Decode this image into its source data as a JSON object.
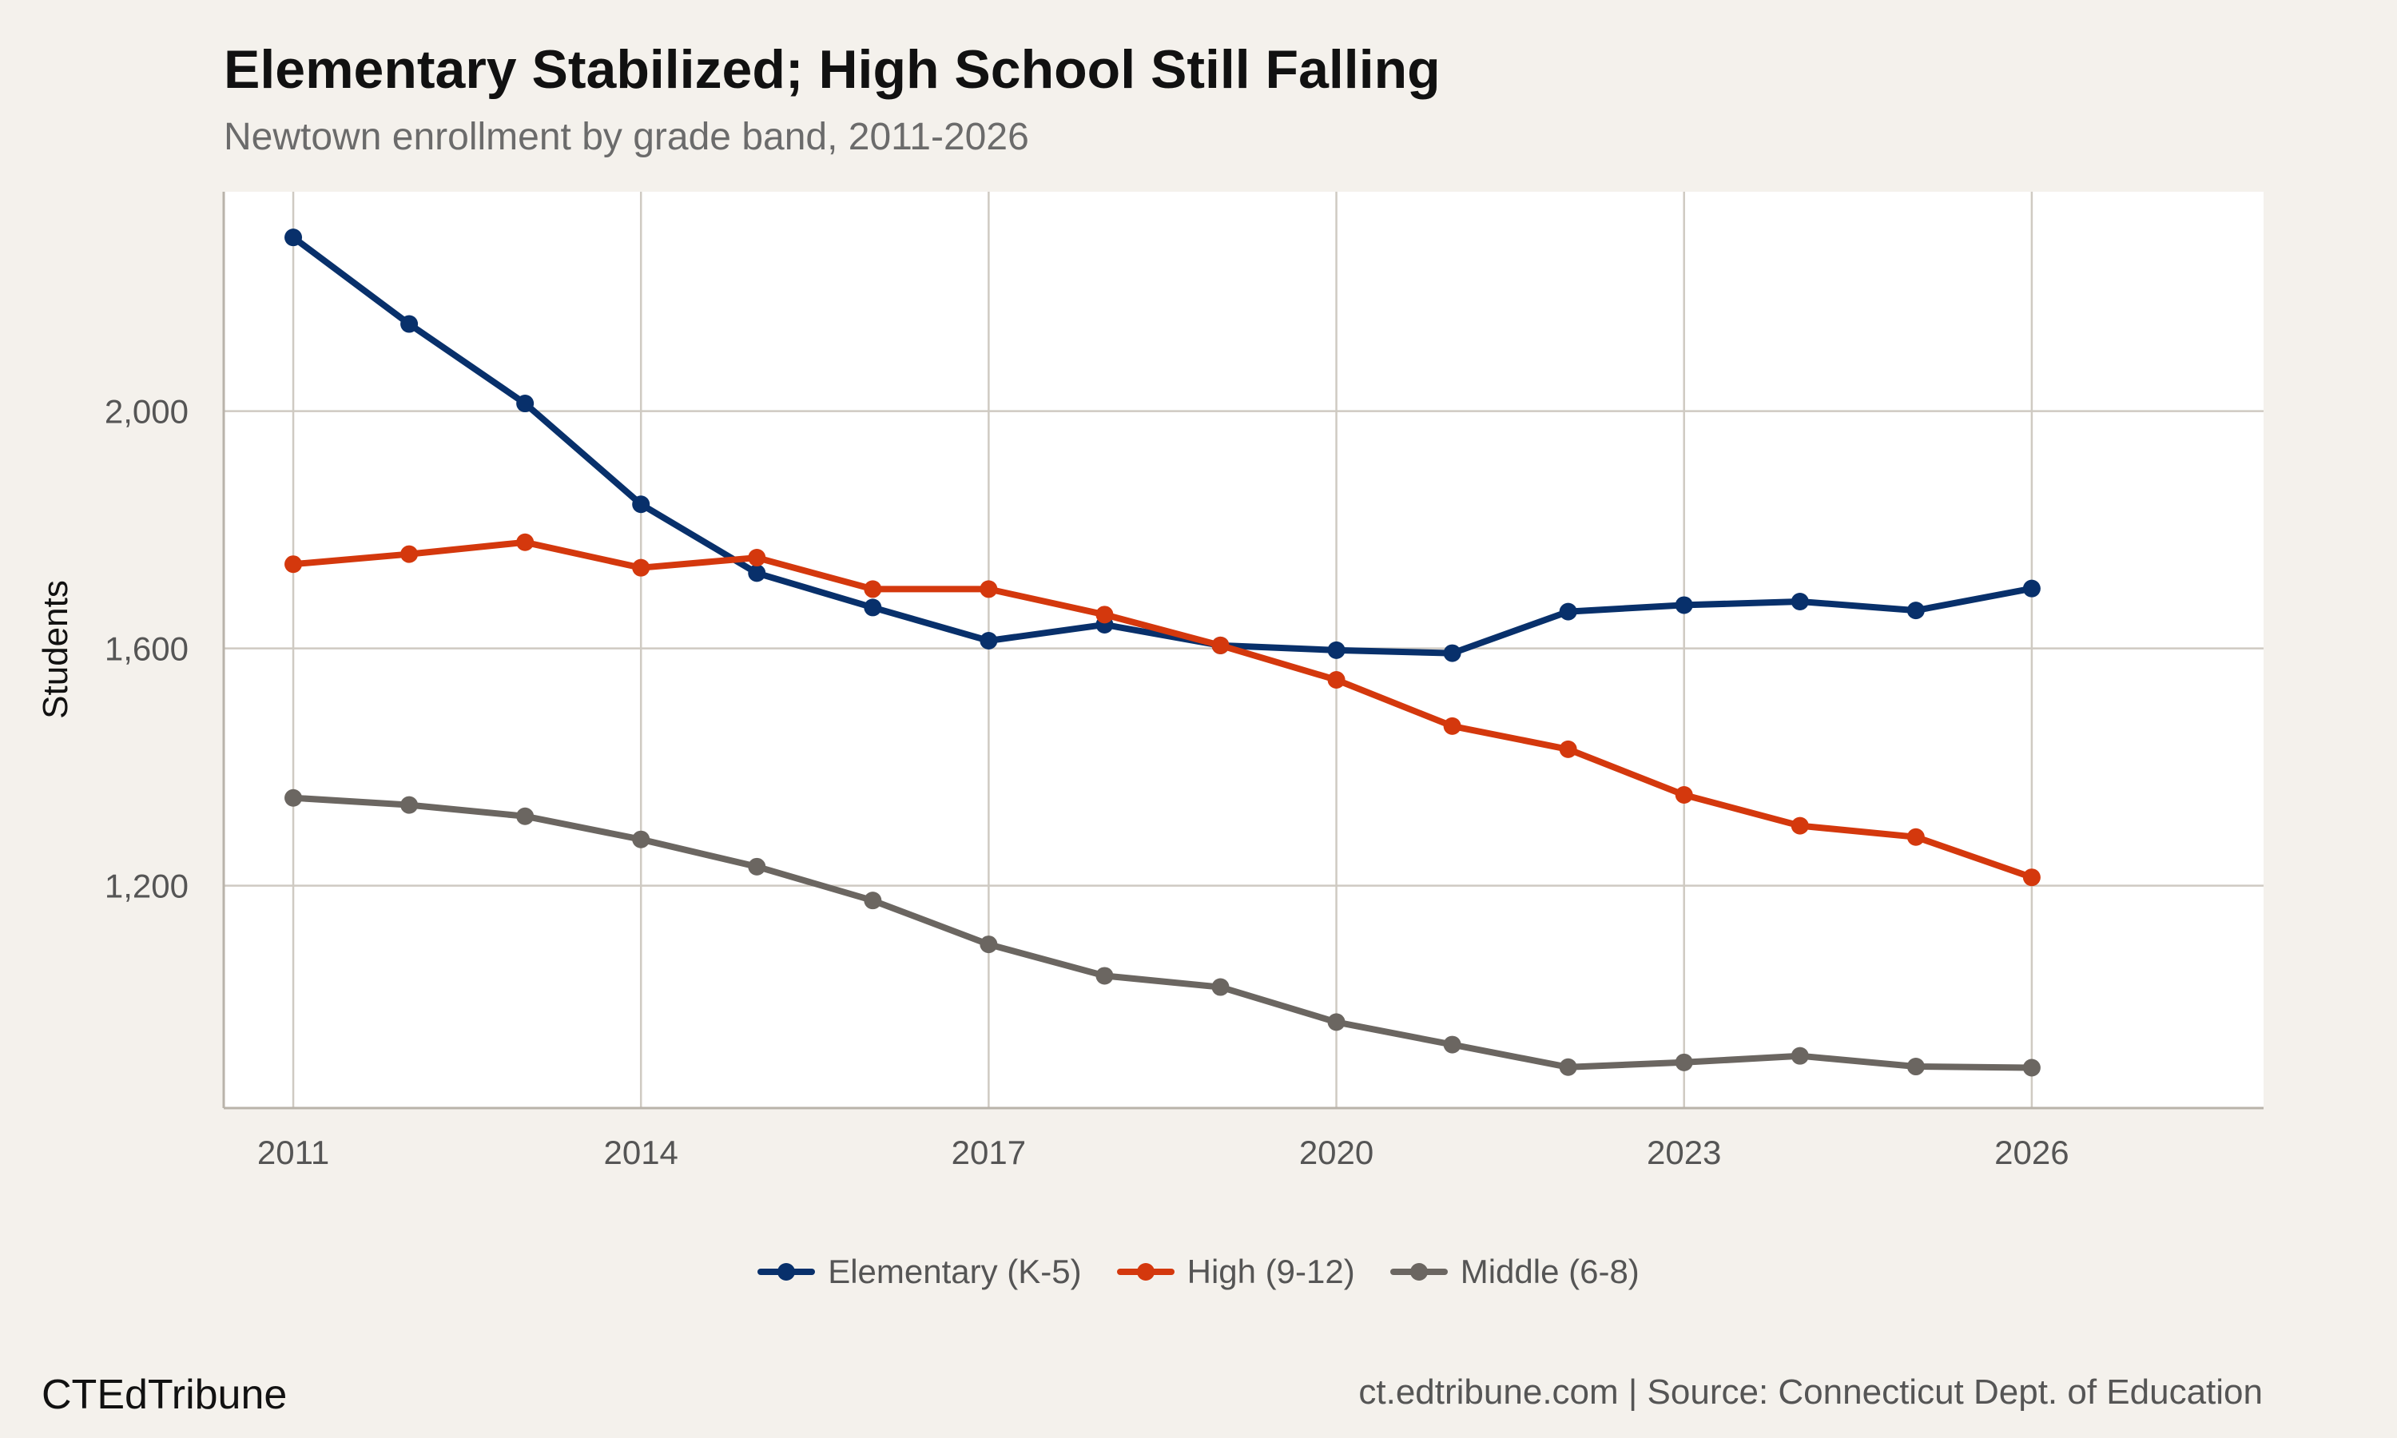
{
  "chart_data": {
    "type": "line",
    "title": "Elementary Stabilized; High School Still Falling",
    "subtitle": "Newtown enrollment by grade band, 2011-2026",
    "ylabel": "Students",
    "xlabel": "",
    "x": [
      2011,
      2012,
      2013,
      2014,
      2015,
      2016,
      2017,
      2018,
      2019,
      2020,
      2021,
      2022,
      2023,
      2024,
      2025,
      2026
    ],
    "xlim": [
      2010.4,
      2028
    ],
    "ylim": [
      825,
      2370
    ],
    "xticks": [
      2011,
      2014,
      2017,
      2020,
      2023,
      2026
    ],
    "yticks": [
      1200,
      1600,
      2000
    ],
    "ytick_labels": [
      "1,200",
      "1,600",
      "2,000"
    ],
    "grid": true,
    "legend_position": "bottom",
    "series": [
      {
        "name": "Elementary (K-5)",
        "color": "#08306b",
        "values": [
          2293,
          2147,
          2013,
          1843,
          1727,
          1669,
          1613,
          1640,
          1605,
          1597,
          1592,
          1662,
          1673,
          1679,
          1664,
          1701
        ]
      },
      {
        "name": "High (9-12)",
        "color": "#d4380d",
        "values": [
          1742,
          1759,
          1779,
          1736,
          1753,
          1700,
          1700,
          1657,
          1605,
          1547,
          1469,
          1430,
          1353,
          1301,
          1282,
          1214
        ]
      },
      {
        "name": "Middle (6-8)",
        "color": "#6b6661",
        "values": [
          1348,
          1336,
          1317,
          1278,
          1232,
          1175,
          1101,
          1048,
          1029,
          970,
          932,
          894,
          902,
          913,
          895,
          893
        ]
      }
    ]
  },
  "footer": {
    "brand": "CTEdTribune",
    "credit": "ct.edtribune.com | Source: Connecticut Dept. of Education"
  }
}
